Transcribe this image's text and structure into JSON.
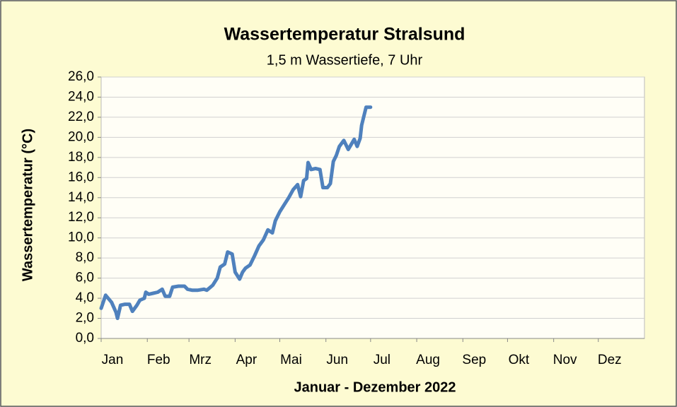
{
  "chart_data": {
    "type": "line",
    "title": "Wassertemperatur Stralsund",
    "subtitle": "1,5 m Wassertiefe, 7 Uhr",
    "x_label": "Januar - Dezember 2022",
    "y_label": "Wassertemperatur (°C)",
    "xlim": [
      0,
      365
    ],
    "xticks": [
      {
        "value": 0,
        "label": "Jan"
      },
      {
        "value": 31,
        "label": "Feb"
      },
      {
        "value": 59,
        "label": "Mrz"
      },
      {
        "value": 90,
        "label": "Apr"
      },
      {
        "value": 120,
        "label": "Mai"
      },
      {
        "value": 151,
        "label": "Jun"
      },
      {
        "value": 181,
        "label": "Jul"
      },
      {
        "value": 212,
        "label": "Aug"
      },
      {
        "value": 243,
        "label": "Sep"
      },
      {
        "value": 273,
        "label": "Okt"
      },
      {
        "value": 304,
        "label": "Nov"
      },
      {
        "value": 334,
        "label": "Dez"
      }
    ],
    "ylim": [
      0,
      26
    ],
    "yticks": [
      {
        "value": 0,
        "label": "0,0"
      },
      {
        "value": 2,
        "label": "2,0"
      },
      {
        "value": 4,
        "label": "4,0"
      },
      {
        "value": 6,
        "label": "6,0"
      },
      {
        "value": 8,
        "label": "8,0"
      },
      {
        "value": 10,
        "label": "10,0"
      },
      {
        "value": 12,
        "label": "12,0"
      },
      {
        "value": 14,
        "label": "14,0"
      },
      {
        "value": 16,
        "label": "16,0"
      },
      {
        "value": 18,
        "label": "18,0"
      },
      {
        "value": 20,
        "label": "20,0"
      },
      {
        "value": 22,
        "label": "22,0"
      },
      {
        "value": 24,
        "label": "24,0"
      },
      {
        "value": 26,
        "label": "26,0"
      }
    ],
    "grid": true,
    "series": [
      {
        "name": "Wassertemperatur",
        "color": "#4f81bd",
        "x": [
          0,
          3,
          7,
          10,
          11,
          13,
          16,
          19,
          21,
          24,
          26,
          29,
          30,
          32,
          35,
          38,
          41,
          43,
          46,
          48,
          52,
          56,
          58,
          61,
          65,
          69,
          71,
          75,
          78,
          80,
          83,
          85,
          88,
          90,
          93,
          95,
          97,
          100,
          103,
          106,
          109,
          112,
          115,
          117,
          120,
          123,
          126,
          129,
          132,
          134,
          136,
          138,
          139,
          141,
          144,
          147,
          149,
          152,
          154,
          156,
          158,
          160,
          163,
          166,
          170,
          172,
          174,
          175,
          178,
          181
        ],
        "values": [
          3.0,
          4.3,
          3.6,
          2.6,
          2.0,
          3.3,
          3.4,
          3.4,
          2.7,
          3.3,
          3.8,
          4.0,
          4.6,
          4.4,
          4.5,
          4.6,
          4.9,
          4.2,
          4.2,
          5.1,
          5.2,
          5.2,
          4.9,
          4.8,
          4.8,
          4.9,
          4.8,
          5.3,
          6.0,
          7.1,
          7.4,
          8.6,
          8.4,
          6.6,
          5.9,
          6.6,
          7.0,
          7.3,
          8.2,
          9.2,
          9.8,
          10.8,
          10.5,
          11.7,
          12.6,
          13.3,
          14.0,
          14.8,
          15.3,
          14.1,
          15.7,
          15.9,
          17.5,
          16.8,
          16.9,
          16.8,
          15.0,
          15.0,
          15.4,
          17.6,
          18.2,
          19.1,
          19.7,
          18.8,
          19.8,
          19.1,
          19.9,
          21.2,
          23.0,
          23.0
        ]
      }
    ]
  }
}
